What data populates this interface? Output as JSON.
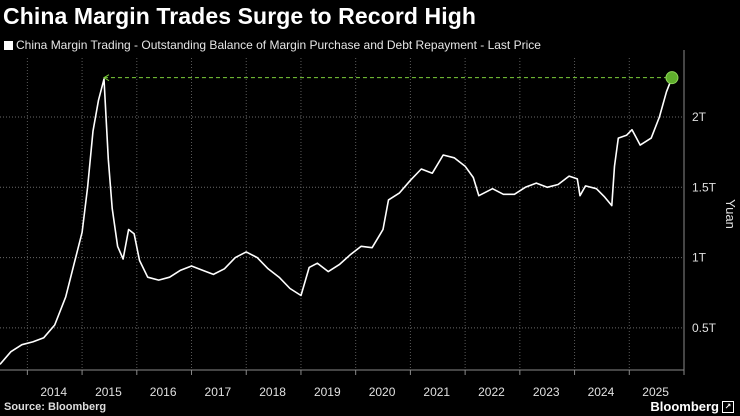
{
  "chart_data": {
    "type": "line",
    "title": "China Margin Trades Surge to Record High",
    "series": [
      {
        "name": "China Margin Trading - Outstanding Balance of Margin Purchase and Debt Repayment - Last Price",
        "color": "#ffffff",
        "points": [
          [
            2013.5,
            0.24
          ],
          [
            2013.7,
            0.33
          ],
          [
            2013.9,
            0.38
          ],
          [
            2014.1,
            0.4
          ],
          [
            2014.3,
            0.43
          ],
          [
            2014.5,
            0.52
          ],
          [
            2014.7,
            0.72
          ],
          [
            2014.85,
            0.95
          ],
          [
            2015.0,
            1.18
          ],
          [
            2015.1,
            1.5
          ],
          [
            2015.2,
            1.9
          ],
          [
            2015.3,
            2.12
          ],
          [
            2015.4,
            2.27
          ],
          [
            2015.48,
            1.7
          ],
          [
            2015.55,
            1.35
          ],
          [
            2015.65,
            1.08
          ],
          [
            2015.75,
            0.99
          ],
          [
            2015.85,
            1.2
          ],
          [
            2015.95,
            1.17
          ],
          [
            2016.05,
            0.98
          ],
          [
            2016.2,
            0.86
          ],
          [
            2016.4,
            0.84
          ],
          [
            2016.6,
            0.86
          ],
          [
            2016.8,
            0.91
          ],
          [
            2017.0,
            0.94
          ],
          [
            2017.2,
            0.91
          ],
          [
            2017.4,
            0.88
          ],
          [
            2017.6,
            0.92
          ],
          [
            2017.8,
            1.0
          ],
          [
            2018.0,
            1.04
          ],
          [
            2018.2,
            1.0
          ],
          [
            2018.4,
            0.92
          ],
          [
            2018.6,
            0.86
          ],
          [
            2018.8,
            0.78
          ],
          [
            2019.0,
            0.73
          ],
          [
            2019.15,
            0.93
          ],
          [
            2019.3,
            0.96
          ],
          [
            2019.5,
            0.9
          ],
          [
            2019.7,
            0.95
          ],
          [
            2019.9,
            1.02
          ],
          [
            2020.1,
            1.08
          ],
          [
            2020.3,
            1.07
          ],
          [
            2020.5,
            1.2
          ],
          [
            2020.6,
            1.41
          ],
          [
            2020.8,
            1.46
          ],
          [
            2021.0,
            1.55
          ],
          [
            2021.2,
            1.63
          ],
          [
            2021.4,
            1.6
          ],
          [
            2021.6,
            1.73
          ],
          [
            2021.8,
            1.71
          ],
          [
            2022.0,
            1.65
          ],
          [
            2022.15,
            1.57
          ],
          [
            2022.25,
            1.44
          ],
          [
            2022.5,
            1.49
          ],
          [
            2022.7,
            1.45
          ],
          [
            2022.9,
            1.45
          ],
          [
            2023.1,
            1.5
          ],
          [
            2023.3,
            1.53
          ],
          [
            2023.5,
            1.5
          ],
          [
            2023.7,
            1.52
          ],
          [
            2023.9,
            1.58
          ],
          [
            2024.05,
            1.56
          ],
          [
            2024.1,
            1.44
          ],
          [
            2024.2,
            1.51
          ],
          [
            2024.4,
            1.49
          ],
          [
            2024.55,
            1.43
          ],
          [
            2024.68,
            1.37
          ],
          [
            2024.73,
            1.65
          ],
          [
            2024.8,
            1.85
          ],
          [
            2024.95,
            1.87
          ],
          [
            2025.05,
            1.91
          ],
          [
            2025.2,
            1.8
          ],
          [
            2025.4,
            1.85
          ],
          [
            2025.55,
            2.0
          ],
          [
            2025.68,
            2.18
          ],
          [
            2025.78,
            2.28
          ]
        ]
      }
    ],
    "reference_line": {
      "value": 2.28,
      "from_x": 2015.4,
      "to_x": 2025.78,
      "color": "#7ccd3a"
    },
    "highlight_point": {
      "x": 2025.78,
      "y": 2.28,
      "color": "#5fae2c"
    },
    "x_ticks": [
      2014,
      2015,
      2016,
      2017,
      2018,
      2019,
      2020,
      2021,
      2022,
      2023,
      2024,
      2025
    ],
    "x_tick_labels": [
      "2014",
      "2015",
      "2016",
      "2017",
      "2018",
      "2019",
      "2020",
      "2021",
      "2022",
      "2023",
      "2024",
      "2025"
    ],
    "xlim": [
      2013.5,
      2026.0
    ],
    "y_ticks": [
      0.5,
      1.0,
      1.5,
      2.0
    ],
    "y_tick_labels": [
      "0.5T",
      "1T",
      "1.5T",
      "2T"
    ],
    "ylim": [
      0.2,
      2.42
    ],
    "ylabel": "Yuan",
    "grid": "horizontal-dotted",
    "legend_position": "top-left"
  },
  "footer": {
    "source": "Source: Bloomberg",
    "brand": "Bloomberg"
  }
}
